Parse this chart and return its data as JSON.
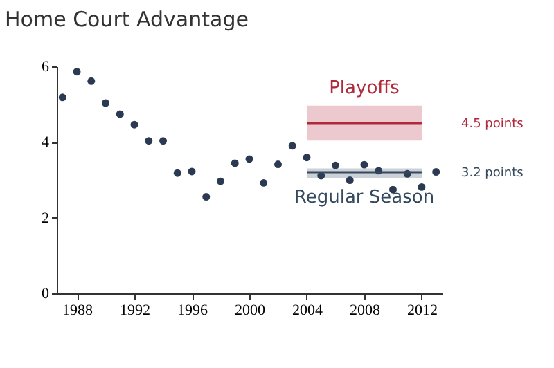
{
  "chart_data": {
    "type": "scatter",
    "title": "Home Court Advantage",
    "xlim": [
      1986.6,
      2013.4
    ],
    "xticks": [
      1988,
      1992,
      1996,
      2000,
      2004,
      2008,
      2012
    ],
    "ylim": [
      0,
      6
    ],
    "yticks": [
      0,
      2,
      4,
      6
    ],
    "grid": false,
    "series": [
      {
        "marker": "circle",
        "color": "#2b3a52",
        "x": [
          1987,
          1988,
          1989,
          1990,
          1991,
          1992,
          1993,
          1994,
          1995,
          1996,
          1997,
          1998,
          1999,
          2000,
          2001,
          2002,
          2003,
          2004,
          2005,
          2006,
          2007,
          2008,
          2009,
          2010,
          2011,
          2012,
          2013
        ],
        "values": [
          5.18,
          5.86,
          5.61,
          5.03,
          4.74,
          4.46,
          4.03,
          4.03,
          3.18,
          3.22,
          2.55,
          2.96,
          3.44,
          3.55,
          2.92,
          3.41,
          3.9,
          3.59,
          3.11,
          3.38,
          2.99,
          3.4,
          3.24,
          2.74,
          3.16,
          2.81,
          3.21
        ]
      },
      {
        "type": "line",
        "marker": "none",
        "line_style": "solid",
        "name": "Playoffs",
        "color": "#b0283a",
        "x": [
          2004,
          2012
        ],
        "values": [
          4.5,
          4.5
        ],
        "lower": [
          4.04,
          4.04
        ],
        "upper": [
          4.96,
          4.96
        ]
      },
      {
        "type": "line",
        "marker": "none",
        "line_style": "solid",
        "name": "Regular Season",
        "color": "#34495e",
        "x": [
          2004,
          2012
        ],
        "values": [
          3.2,
          3.2
        ],
        "lower": [
          3.05,
          3.05
        ],
        "upper": [
          3.3,
          3.3
        ]
      }
    ],
    "annotations": [
      "4.5 points",
      "3.2 points"
    ]
  }
}
